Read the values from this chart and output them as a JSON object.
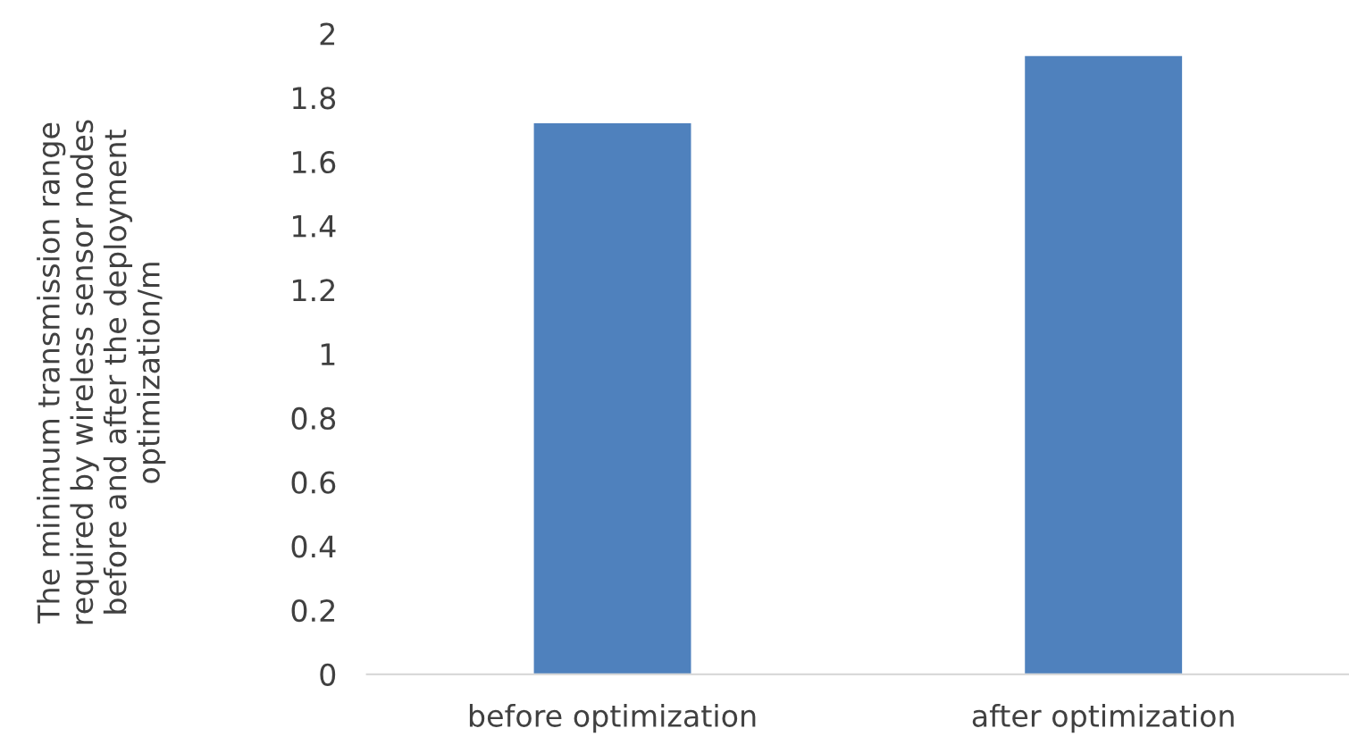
{
  "chart_data": {
    "type": "bar",
    "ylabel": "The minimum transmission range\nrequired by wireless sensor nodes\nbefore and after the deployment\noptimization/m",
    "categories": [
      "before optimization",
      "after optimization"
    ],
    "values": [
      1.72,
      1.93
    ],
    "color": "#4f81bd",
    "ylim": [
      0,
      2
    ],
    "yticks": [
      0,
      0.2,
      0.4,
      0.6,
      0.8,
      1,
      1.2,
      1.4,
      1.6,
      1.8,
      2
    ],
    "grid": false,
    "legend": false
  }
}
